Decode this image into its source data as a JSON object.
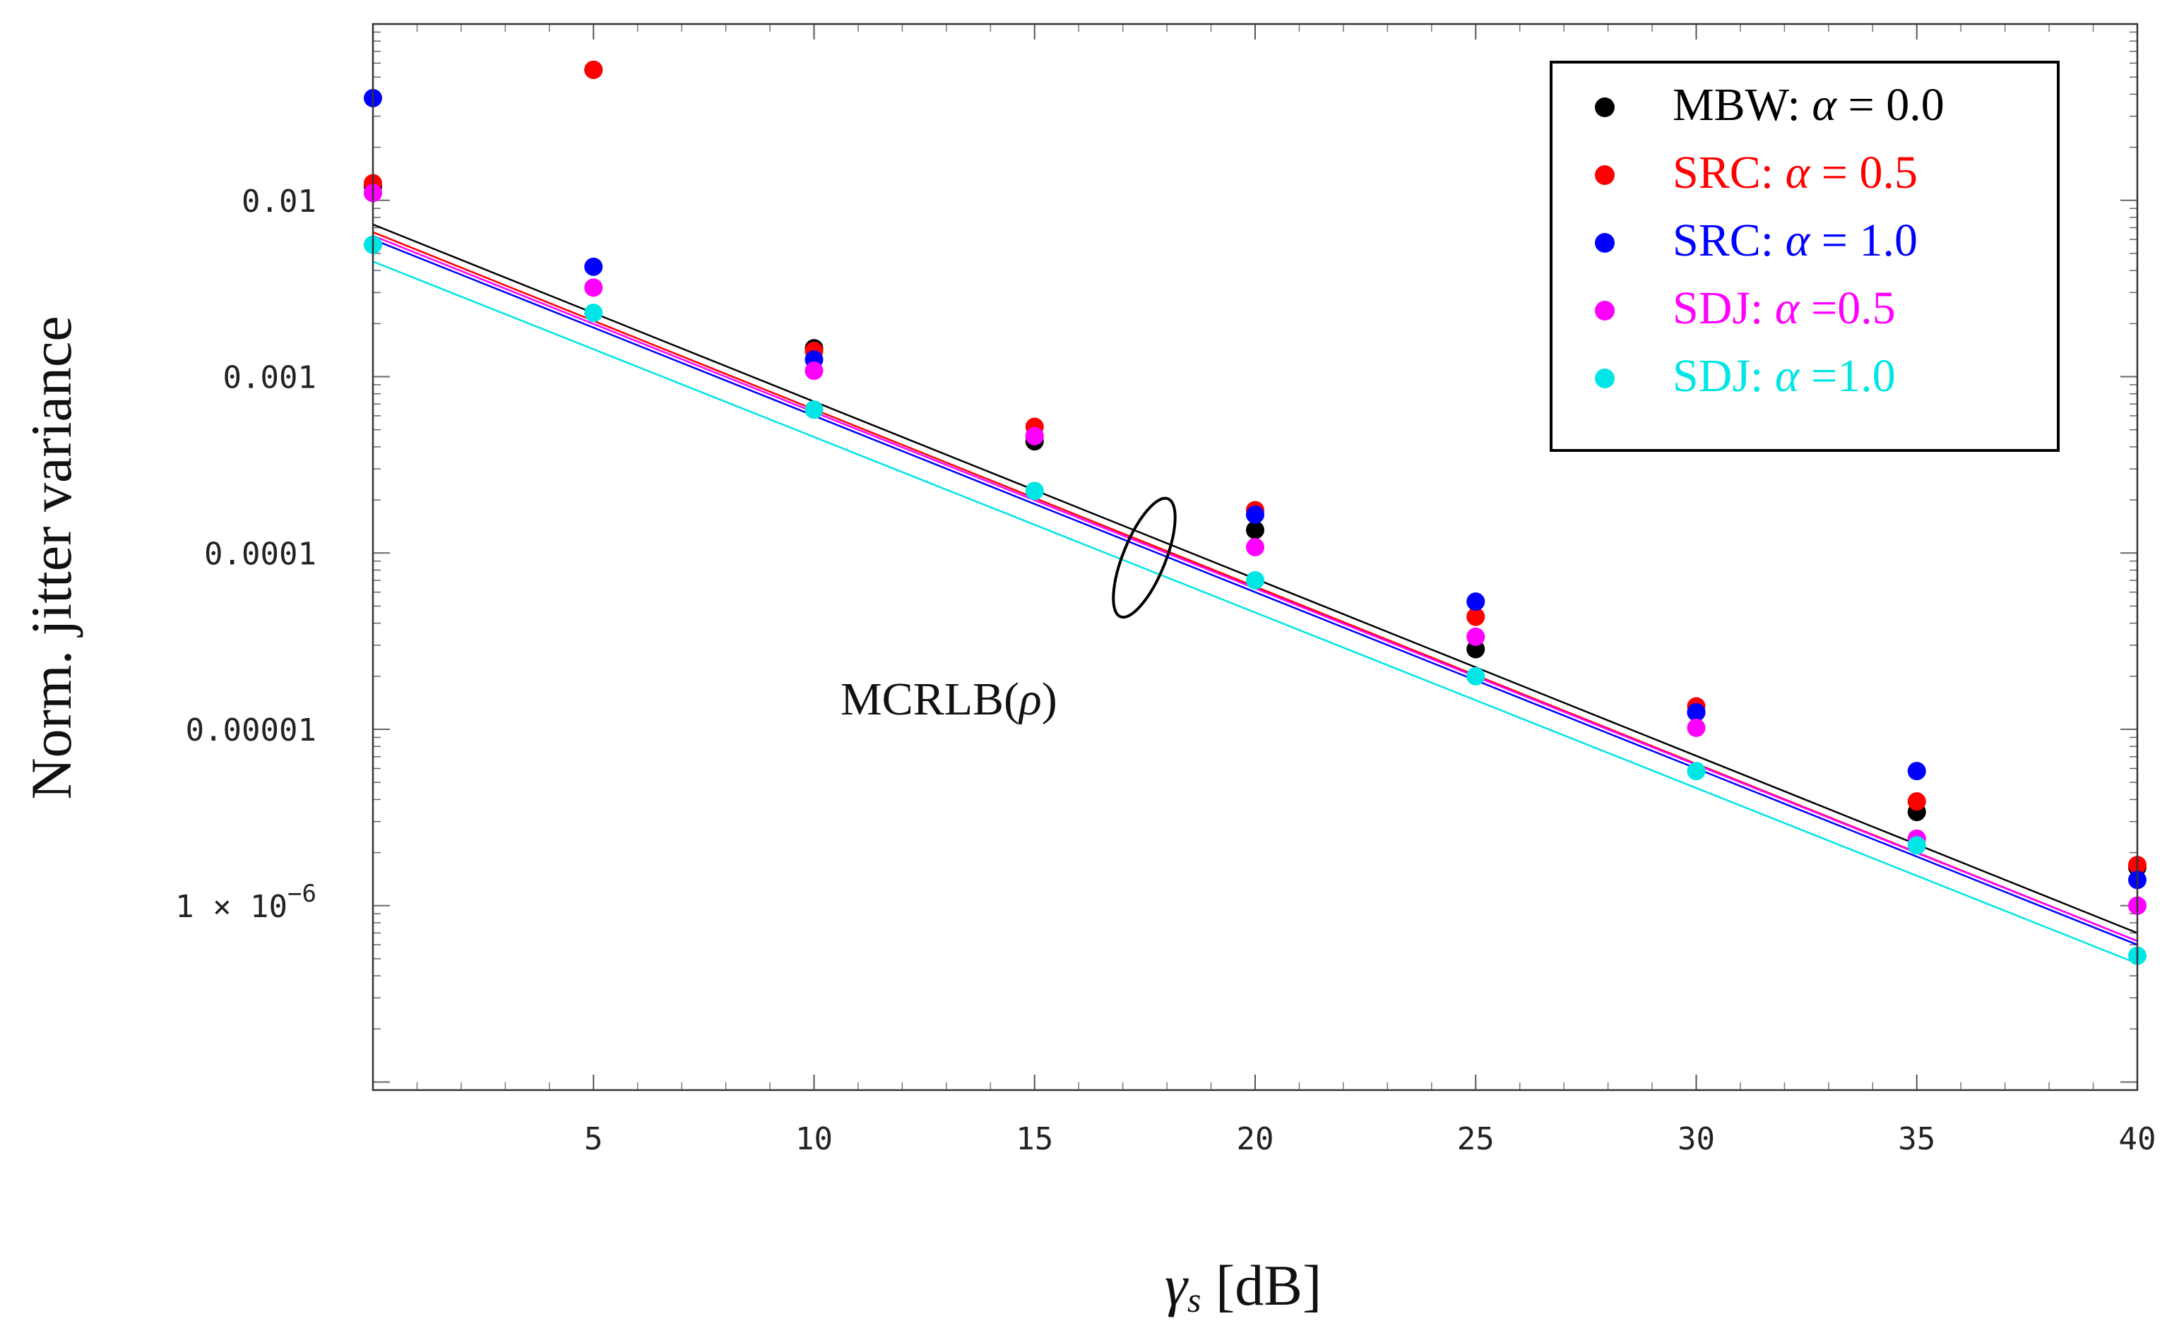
{
  "chart_data": {
    "type": "scatter",
    "yscale": "log",
    "xlabel_symbol": "γ",
    "xlabel_subscript": "s",
    "xlabel_unit": " [dB]",
    "ylabel": "Norm. jitter variance",
    "xlim": [
      0,
      40
    ],
    "ylim": [
      9e-08,
      0.1
    ],
    "x_ticks": [
      {
        "value": 5,
        "label": "5"
      },
      {
        "value": 10,
        "label": "10"
      },
      {
        "value": 15,
        "label": "15"
      },
      {
        "value": 20,
        "label": "20"
      },
      {
        "value": 25,
        "label": "25"
      },
      {
        "value": 30,
        "label": "30"
      },
      {
        "value": 35,
        "label": "35"
      },
      {
        "value": 40,
        "label": "40"
      }
    ],
    "y_ticks": [
      {
        "value": 0.01,
        "label": "0.01"
      },
      {
        "value": 0.001,
        "label": "0.001"
      },
      {
        "value": 0.0001,
        "label": "0.0001"
      },
      {
        "value": 1e-05,
        "label": "0.00001"
      },
      {
        "value": 1e-06,
        "label": "1 × 10",
        "exponent": "−6"
      }
    ],
    "x": [
      0,
      5,
      10,
      15,
      20,
      25,
      30,
      35,
      40
    ],
    "series": [
      {
        "name": "MBW",
        "alpha_label": "α",
        "alpha_value": "= 0.0",
        "color": "#000000",
        "values": [
          0.012,
          0.055,
          0.00145,
          0.00043,
          0.000135,
          2.85e-05,
          1.25e-05,
          3.4e-06,
          1.65e-06
        ],
        "bound": [
          0.0073,
          7e-07
        ]
      },
      {
        "name": "SRC",
        "alpha_label": "α",
        "alpha_value": "= 0.5",
        "color": "#ff0000",
        "values": [
          0.0125,
          0.055,
          0.0014,
          0.00052,
          0.000175,
          4.35e-05,
          1.35e-05,
          3.9e-06,
          1.7e-06
        ],
        "bound": [
          0.0066,
          6.3e-07
        ]
      },
      {
        "name": "SRC",
        "alpha_label": "α",
        "alpha_value": "= 1.0",
        "color": "#0000ff",
        "values": [
          0.038,
          0.0042,
          0.00125,
          0.00046,
          0.000165,
          5.3e-05,
          1.25e-05,
          5.8e-06,
          1.4e-06
        ],
        "bound": [
          0.006,
          6e-07
        ]
      },
      {
        "name": "SDJ",
        "alpha_label": "α",
        "alpha_value": "=0.5",
        "color": "#ff00ff",
        "values": [
          0.011,
          0.0032,
          0.00108,
          0.00046,
          0.000108,
          3.35e-05,
          1.02e-05,
          2.4e-06,
          1e-06
        ],
        "bound": [
          0.0063,
          6.3e-07
        ]
      },
      {
        "name": "SDJ",
        "alpha_label": "α",
        "alpha_value": "=1.0",
        "color": "#00e5e5",
        "values": [
          0.0056,
          0.0023,
          0.00065,
          0.000225,
          7e-05,
          2e-05,
          5.8e-06,
          2.2e-06,
          5.2e-07
        ],
        "bound": [
          0.0045,
          4.7e-07
        ]
      }
    ],
    "annotation": {
      "text": "MCRLB(",
      "symbol": "ρ",
      "close": ")"
    },
    "legend_placement": "top-right"
  }
}
